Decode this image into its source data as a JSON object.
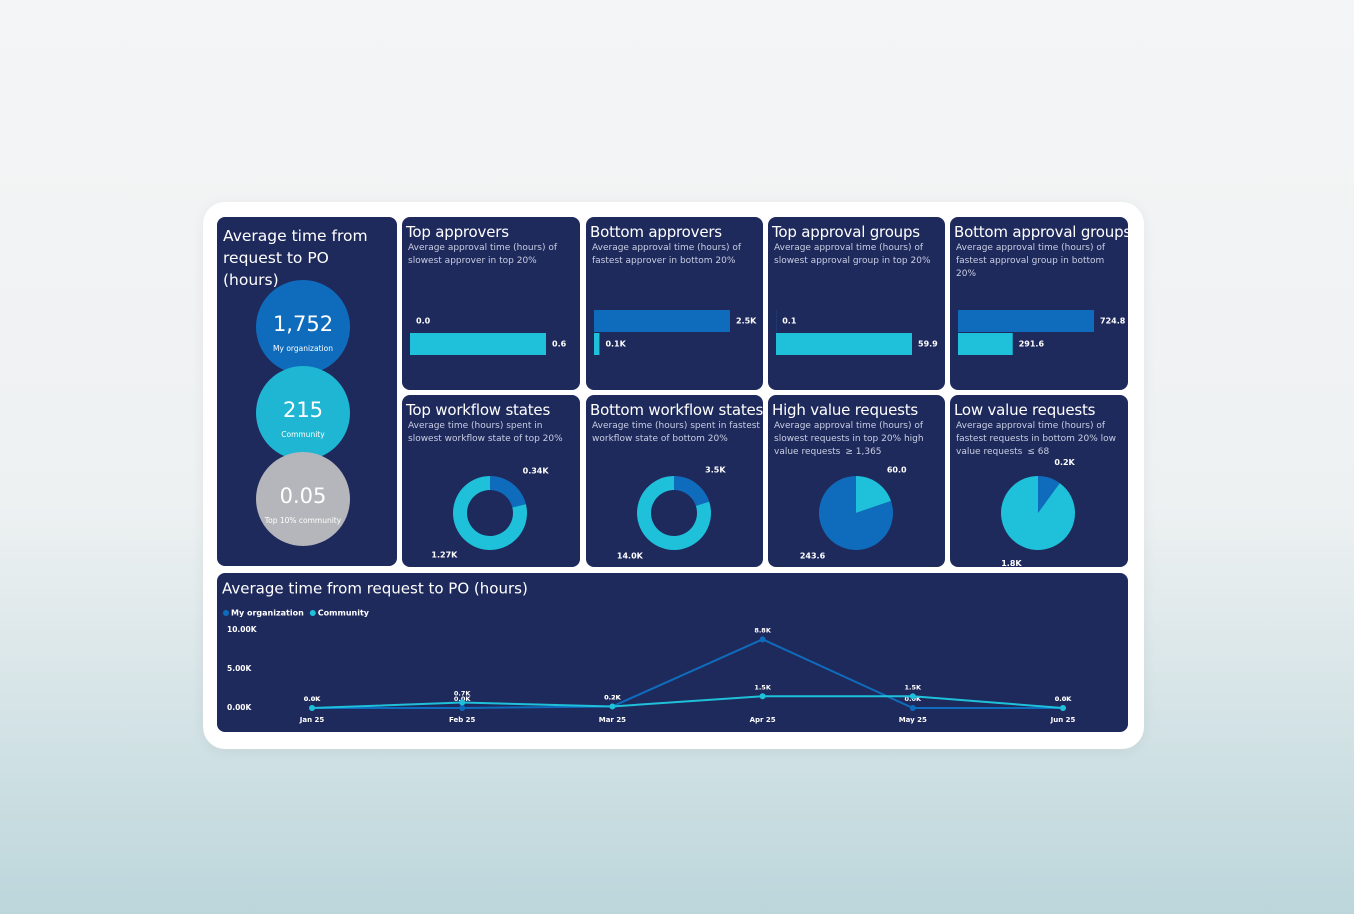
{
  "kpi": {
    "title": "Average time from request to PO (hours)",
    "items": [
      {
        "value": "1,752",
        "label": "My organization",
        "color": "#0f6cbd"
      },
      {
        "value": "215",
        "label": "Community",
        "color": "#1fb6d4"
      },
      {
        "value": "0.05",
        "label": "Top 10% community",
        "color": "#b5b6bb"
      }
    ]
  },
  "chart_data": [
    {
      "type": "bar",
      "title": "Top approvers",
      "subtitle": "Average approval time (hours) of slowest approver in top 20%",
      "values": [
        0,
        0.6
      ],
      "value_labels": [
        "0.0",
        "0.6"
      ],
      "colors": [
        "#0f6cbd",
        "#1fc0da"
      ]
    },
    {
      "type": "bar",
      "title": "Bottom approvers",
      "subtitle": "Average approval time (hours) of fastest approver in bottom 20%",
      "values": [
        2500,
        100
      ],
      "value_labels": [
        "2.5K",
        "0.1K"
      ],
      "colors": [
        "#0f6cbd",
        "#1fc0da"
      ]
    },
    {
      "type": "bar",
      "title": "Top approval groups",
      "subtitle": "Average approval time (hours) of slowest approval group in top 20%",
      "values": [
        0.1,
        59.9
      ],
      "colors": [
        "#0f6cbd",
        "#1fc0da"
      ]
    },
    {
      "type": "bar",
      "title": "Bottom approval groups",
      "subtitle": "Average approval time (hours) of fastest approval group in bottom 20%",
      "values": [
        724.8,
        291.6
      ],
      "colors": [
        "#0f6cbd",
        "#1fc0da"
      ]
    },
    {
      "type": "donut",
      "title": "Top workflow states",
      "subtitle": "Average time (hours) spent in slowest workflow state of top 20%",
      "values": [
        340,
        1270
      ],
      "value_labels": [
        "0.34K",
        "1.27K"
      ],
      "colors": [
        "#0f6cbd",
        "#1fc0da"
      ]
    },
    {
      "type": "donut",
      "title": "Bottom workflow states",
      "subtitle": "Average time (hours) spent in fastest workflow state of bottom 20%",
      "values": [
        3500,
        14000
      ],
      "value_labels": [
        "3.5K",
        "14.0K"
      ],
      "colors": [
        "#0f6cbd",
        "#1fc0da"
      ]
    },
    {
      "type": "pie",
      "title": "High value requests",
      "subtitle": "Average approval time (hours) of slowest requests in top 20% high value requests",
      "note": "≥ 1,365",
      "values": [
        60,
        243.6
      ],
      "value_labels": [
        "60.0",
        "243.6"
      ],
      "colors": [
        "#1fc0da",
        "#0f6cbd"
      ]
    },
    {
      "type": "pie",
      "title": "Low value requests",
      "subtitle": "Average approval time (hours) of fastest requests in bottom 20% low value requests",
      "note": "≤ 68",
      "values": [
        200,
        1800
      ],
      "value_labels": [
        "0.2K",
        "1.8K"
      ],
      "colors": [
        "#0f6cbd",
        "#1fc0da"
      ]
    },
    {
      "type": "line",
      "title": "Average time from request to PO (hours)",
      "legend": "top-left",
      "categories": [
        "Jan 25",
        "Feb 25",
        "Mar 25",
        "Apr 25",
        "May 25",
        "Jun 25"
      ],
      "ylim": [
        0,
        10000
      ],
      "yticks": [
        {
          "value": 0,
          "label": "0.00K"
        },
        {
          "value": 5000,
          "label": "5.00K"
        },
        {
          "value": 10000,
          "label": "10.00K"
        }
      ],
      "series": [
        {
          "name": "My organization",
          "color": "#0f6cbd",
          "values": [
            0,
            0,
            200,
            8800,
            0,
            0
          ],
          "value_labels": [
            "0.0K",
            "0.0K",
            "0.2K",
            "8.8K",
            "0.0K",
            "0.0K"
          ]
        },
        {
          "name": "Community",
          "color": "#1fc0da",
          "values": [
            0,
            700,
            200,
            1500,
            1500,
            0
          ],
          "value_labels": [
            "0.0K",
            "0.7K",
            "0.2K",
            "1.5K",
            "1.5K",
            "0.0K"
          ]
        }
      ]
    }
  ]
}
